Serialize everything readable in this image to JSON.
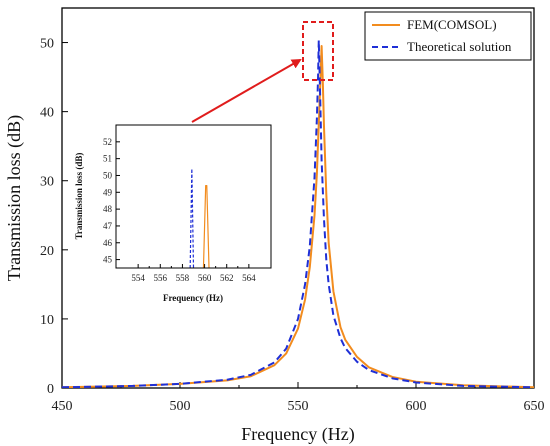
{
  "chart_data": [
    {
      "type": "line",
      "xlabel": "Frequency (Hz)",
      "ylabel": "Transmission loss (dB)",
      "xlim": [
        450,
        650
      ],
      "ylim": [
        0,
        55
      ],
      "xticks": [
        "450",
        "500",
        "550",
        "600",
        "650"
      ],
      "yticks": [
        "0",
        "10",
        "20",
        "30",
        "40",
        "50"
      ],
      "legend_position": "top-right",
      "series": [
        {
          "name": "FEM(COMSOL)",
          "color": "#f28c1e",
          "style": "solid",
          "x": [
            450,
            480,
            500,
            520,
            530,
            540,
            545,
            550,
            553,
            555,
            557,
            558,
            559,
            559.5,
            560,
            560.5,
            561,
            562,
            563,
            565,
            568,
            570,
            575,
            580,
            590,
            600,
            620,
            650
          ],
          "y": [
            0.1,
            0.3,
            0.6,
            1.1,
            1.7,
            3.3,
            5.0,
            8.6,
            12.8,
            17.5,
            25.0,
            31.0,
            40.0,
            44.5,
            49.5,
            44.5,
            38.0,
            28.0,
            21.0,
            14.0,
            8.8,
            7.0,
            4.5,
            3.0,
            1.6,
            0.9,
            0.4,
            0.1
          ]
        },
        {
          "name": "Theoretical solution",
          "color": "#1f2fd6",
          "style": "dashed",
          "x": [
            450,
            480,
            500,
            520,
            530,
            540,
            545,
            550,
            553,
            555,
            557,
            558,
            558.5,
            558.8,
            559.2,
            560,
            561,
            562,
            563,
            565,
            568,
            570,
            575,
            580,
            590,
            600,
            620,
            650
          ],
          "y": [
            0.1,
            0.3,
            0.6,
            1.2,
            1.9,
            3.7,
            5.7,
            10.0,
            15.0,
            20.5,
            30.5,
            39.0,
            45.0,
            50.3,
            45.0,
            33.0,
            24.5,
            18.5,
            15.0,
            10.5,
            7.2,
            5.8,
            3.8,
            2.6,
            1.4,
            0.8,
            0.3,
            0.1
          ]
        }
      ]
    },
    {
      "type": "line",
      "xlabel": "Frequency (Hz)",
      "ylabel": "Transmission loss (dB)",
      "xlim": [
        552,
        566
      ],
      "ylim": [
        44.5,
        53
      ],
      "xticks": [
        "554",
        "556",
        "558",
        "560",
        "562",
        "564"
      ],
      "yticks": [
        "45",
        "46",
        "47",
        "48",
        "49",
        "50",
        "51",
        "52"
      ],
      "series": [
        {
          "name": "FEM(COMSOL)",
          "color": "#f28c1e",
          "style": "solid",
          "x": [
            559.9,
            560.1,
            560.2,
            560.4
          ],
          "y": [
            44.5,
            49.4,
            49.4,
            44.5
          ]
        },
        {
          "name": "Theoretical solution",
          "color": "#1f2fd6",
          "style": "dashed",
          "x": [
            558.7,
            558.85,
            559.0
          ],
          "y": [
            44.5,
            50.4,
            44.5
          ]
        }
      ]
    }
  ],
  "colors": {
    "highlight_box": "#e01c1c",
    "arrow": "#e01c1c"
  }
}
